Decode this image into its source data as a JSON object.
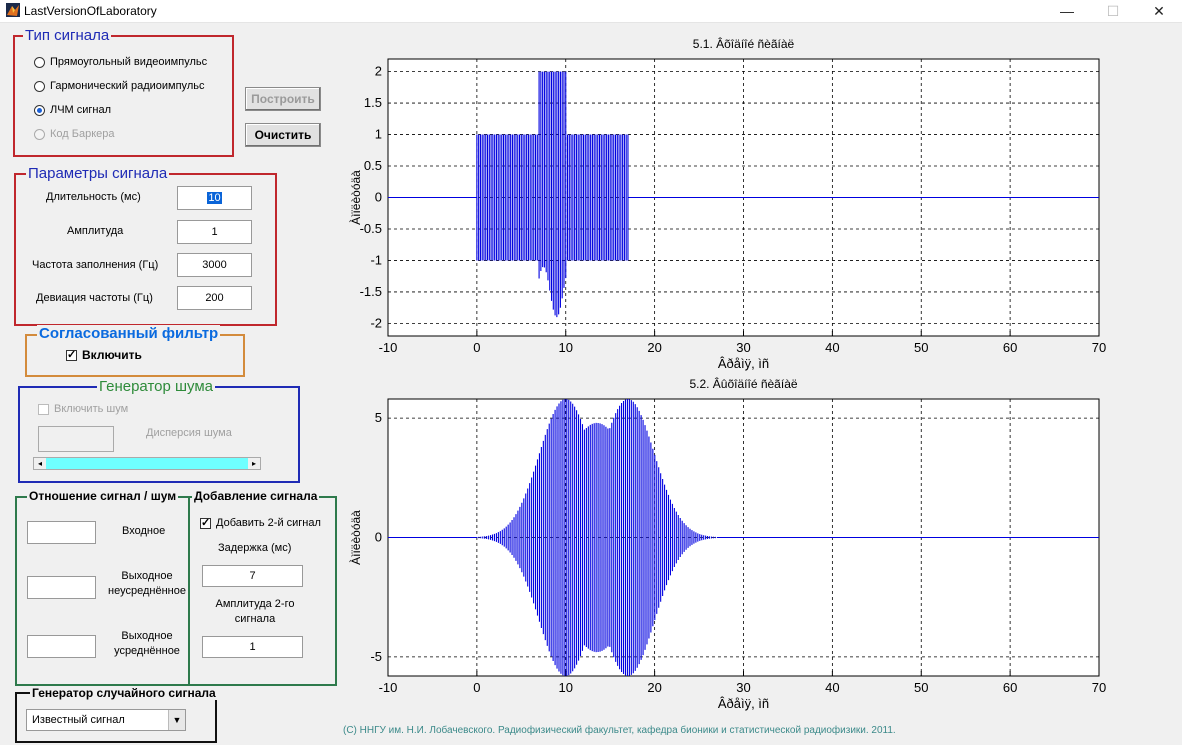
{
  "window": {
    "title": "LastVersionOfLaboratory",
    "min": "—",
    "max": "☐",
    "close": "✕"
  },
  "signal_type": {
    "title": "Тип сигнала",
    "options": [
      {
        "label": "Прямоугольный видеоимпульс",
        "selected": false,
        "enabled": true
      },
      {
        "label": "Гармонический радиоимпульс",
        "selected": false,
        "enabled": true
      },
      {
        "label": "ЛЧМ сигнал",
        "selected": true,
        "enabled": true
      },
      {
        "label": "Код Баркера",
        "selected": false,
        "enabled": false
      }
    ]
  },
  "buttons": {
    "build": "Построить",
    "clear": "Очистить"
  },
  "signal_params": {
    "title": "Параметры сигнала",
    "duration_label": "Длительность (мс)",
    "duration_value": "10",
    "amplitude_label": "Амплитуда",
    "amplitude_value": "1",
    "carrier_label": "Частота заполнения (Гц)",
    "carrier_value": "3000",
    "deviation_label": "Девиация частоты (Гц)",
    "deviation_value": "200"
  },
  "matched_filter": {
    "title": "Согласованный фильтр",
    "enable_label": "Включить",
    "checked": true
  },
  "noise_gen": {
    "title": "Генератор шума",
    "enable_label": "Включить шум",
    "variance_label": "Дисперсия шума",
    "variance_value": ""
  },
  "snr": {
    "title": "Отношение сигнал / шум",
    "input_label": "Входное",
    "out_raw_label": "Выходное неусреднённое",
    "out_avg_label": "Выходное усреднённое",
    "input_value": "",
    "out_raw_value": "",
    "out_avg_value": ""
  },
  "add_signal": {
    "title": "Добавление сигнала",
    "check_label": "Добавить 2-й сигнал",
    "checked": true,
    "delay_label": "Задержка (мс)",
    "delay_value": "7",
    "amp2_label": "Амплитуда 2-го сигнала",
    "amp2_value": "1"
  },
  "random_gen": {
    "title": "Генератор случайного сигнала",
    "selected": "Известный сигнал"
  },
  "footer": "(С) ННГУ им. Н.И. Лобачевского. Радиофизический факультет, кафедра бионики и статистической радиофизики. 2011.",
  "colors": {
    "red": "#c0272d",
    "orange": "#d38b3c",
    "blue_frame": "#1f2bb5",
    "green_frame": "#2e7a4c",
    "signal": "#0000e0",
    "slider": "#6fffff"
  },
  "chart_data": [
    {
      "type": "line",
      "title": "5.1. Âõîäíîé ñèãíàë",
      "xlabel": "Âðåìÿ, ìñ",
      "ylabel": "Àìïëèòóäà",
      "xlim": [
        -10,
        70
      ],
      "ylim": [
        -2.2,
        2.2
      ],
      "xticks": [
        -10,
        0,
        10,
        20,
        30,
        40,
        50,
        60,
        70
      ],
      "yticks": [
        -2,
        -1.5,
        -1,
        -0.5,
        0,
        0.5,
        1,
        1.5,
        2
      ],
      "ytick_labels": [
        "-2",
        "-1.5",
        "-1",
        "-0.5",
        "0",
        "0.5",
        "1",
        "1.5",
        "2"
      ],
      "grid": true,
      "series": [
        {
          "color": "#0000e0",
          "segments": [
            {
              "x_start": 0,
              "x_end": 10,
              "amplitude": 1
            },
            {
              "x_start": 7,
              "x_end": 17,
              "amplitude": 1
            }
          ]
        }
      ]
    },
    {
      "type": "line",
      "title": "5.2. Âûõîäíîé ñèãíàë",
      "xlabel": "Âðåìÿ, ìñ",
      "ylabel": "Àìïëèòóäà",
      "xlim": [
        -10,
        70
      ],
      "ylim": [
        -5.8,
        5.8
      ],
      "xticks": [
        -10,
        0,
        10,
        20,
        30,
        40,
        50,
        60,
        70
      ],
      "yticks": [
        -5,
        0,
        5
      ],
      "ytick_labels": [
        "-5",
        "0",
        "5"
      ],
      "grid": true,
      "series": [
        {
          "color": "#0000e0",
          "x_start": 0,
          "x_end": 27,
          "peaks": [
            {
              "x": 10,
              "value": 5.8
            },
            {
              "x": 17,
              "value": 5.8
            }
          ]
        }
      ]
    }
  ]
}
